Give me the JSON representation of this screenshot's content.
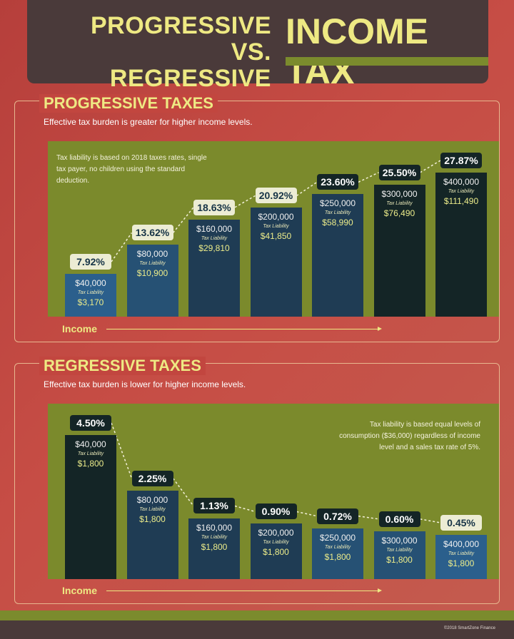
{
  "header": {
    "title_line1": "PROGRESSIVE",
    "title_line2": "VS. REGRESSIVE",
    "title_big": "INCOME TAX"
  },
  "colors": {
    "background": "#c2463f",
    "header": "#4a3a3a",
    "title_yellow": "#eee983",
    "plot_green": "#7b8a2c",
    "bar_dark": "#142526",
    "bar_navy": "#1f3c54",
    "bar_blue": "#2b5f8c"
  },
  "chart_data": [
    {
      "type": "bar",
      "title": "PROGRESSIVE TAXES",
      "subtitle": "Effective tax burden is greater for higher income levels.",
      "note": "Tax liability is based on 2018 taxes rates, single tax payer, no children using the standard deduction.",
      "xlabel": "Income",
      "value_label": "Tax Liability",
      "categories": [
        "$40,000",
        "$80,000",
        "$160,000",
        "$200,000",
        "$250,000",
        "$300,000",
        "$400,000"
      ],
      "liability": [
        "$3,170",
        "$10,900",
        "$29,810",
        "$41,850",
        "$58,990",
        "$76,490",
        "$111,490"
      ],
      "rates": [
        "7.92%",
        "13.62%",
        "18.63%",
        "20.92%",
        "23.60%",
        "25.50%",
        "27.87%"
      ],
      "values": [
        7.92,
        13.62,
        18.63,
        20.92,
        23.6,
        25.5,
        27.87
      ],
      "ylim": [
        0,
        30
      ]
    },
    {
      "type": "bar",
      "title": "REGRESSIVE TAXES",
      "subtitle": "Effective tax burden is lower for higher income levels.",
      "note": "Tax liability is based equal levels of consumption ($36,000) regardless of income level and a sales tax rate of 5%.",
      "xlabel": "Income",
      "value_label": "Tax Liability",
      "categories": [
        "$40,000",
        "$80,000",
        "$160,000",
        "$200,000",
        "$250,000",
        "$300,000",
        "$400,000"
      ],
      "liability": [
        "$1,800",
        "$1,800",
        "$1,800",
        "$1,800",
        "$1,800",
        "$1,800",
        "$1,800"
      ],
      "rates": [
        "4.50%",
        "2.25%",
        "1.13%",
        "0.90%",
        "0.72%",
        "0.60%",
        "0.45%"
      ],
      "values": [
        4.5,
        2.25,
        1.13,
        0.9,
        0.72,
        0.6,
        0.45
      ],
      "ylim": [
        0,
        4.5
      ]
    }
  ],
  "footer": {
    "credit": "©2018 SmartZone Finance"
  }
}
